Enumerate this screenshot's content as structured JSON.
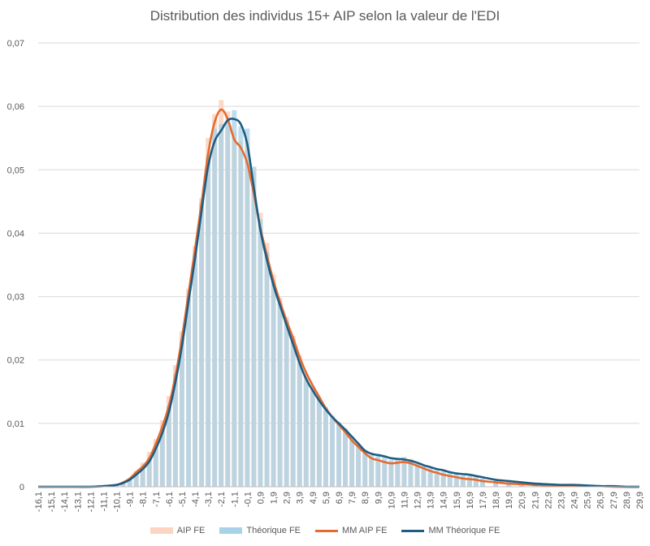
{
  "chart_data": {
    "type": "bar",
    "title": "Distribution des individus 15+ AIP selon la valeur de l'EDI",
    "xlabel": "",
    "ylabel": "",
    "ylim": [
      0,
      0.07
    ],
    "yticks": [
      "0",
      "0,01",
      "0,02",
      "0,03",
      "0,04",
      "0,05",
      "0,06",
      "0,07"
    ],
    "x_tick_labels": [
      "-16,1",
      "-15,1",
      "-14,1",
      "-13,1",
      "-12,1",
      "-11,1",
      "-10,1",
      "-9,1",
      "-8,1",
      "-7,1",
      "-6,1",
      "-5,1",
      "-4,1",
      "-3,1",
      "-2,1",
      "-1,1",
      "-0,1",
      "0,9",
      "1,9",
      "2,9",
      "3,9",
      "4,9",
      "5,9",
      "6,9",
      "7,9",
      "8,9",
      "9,9",
      "10,9",
      "11,9",
      "12,9",
      "13,9",
      "14,9",
      "15,9",
      "16,9",
      "17,9",
      "18,9",
      "19,9",
      "20,9",
      "21,9",
      "22,9",
      "23,9",
      "24,9",
      "25,9",
      "26,9",
      "27,9",
      "28,9",
      "29,9"
    ],
    "xlim": [
      -16.1,
      29.9
    ],
    "grid": true,
    "legend_position": "bottom",
    "colors": {
      "aip_fe": "#fbd5c2",
      "theorique_fe": "#a8d2e8",
      "mm_aip_fe": "#e56b2e",
      "mm_theorique_fe": "#1e5c82"
    },
    "legend": [
      "AIP FE",
      "Théorique FE",
      "MM AIP FE",
      "MM Théorique FE"
    ],
    "series": [
      {
        "name": "AIP FE",
        "kind": "bar",
        "x": [
          -16.1,
          -15.1,
          -14.1,
          -13.1,
          -12.1,
          -11.1,
          -10.1,
          -9.6,
          -9.1,
          -8.6,
          -8.1,
          -7.6,
          -7.1,
          -6.6,
          -6.1,
          -5.6,
          -5.1,
          -4.6,
          -4.1,
          -3.6,
          -3.1,
          -2.6,
          -2.1,
          -1.6,
          -1.1,
          -0.6,
          -0.1,
          0.4,
          0.9,
          1.4,
          1.9,
          2.4,
          2.9,
          3.4,
          3.9,
          4.4,
          4.9,
          5.4,
          5.9,
          6.4,
          6.9,
          7.4,
          7.9,
          8.4,
          8.9,
          9.4,
          9.9,
          10.4,
          10.9,
          11.4,
          11.9,
          12.4,
          12.9,
          13.4,
          13.9,
          14.4,
          14.9,
          15.4,
          15.9,
          16.4,
          16.9,
          17.4,
          17.9,
          18.9,
          19.9,
          20.9,
          21.9,
          22.9,
          23.9,
          24.9,
          25.9,
          26.9,
          27.9,
          28.9,
          29.9
        ],
        "values": [
          0,
          0,
          0,
          0,
          0,
          0.0001,
          0.0003,
          0.0007,
          0.0013,
          0.0025,
          0.0038,
          0.0055,
          0.0075,
          0.0105,
          0.0143,
          0.0192,
          0.0245,
          0.0312,
          0.038,
          0.0455,
          0.055,
          0.0588,
          0.061,
          0.0592,
          0.056,
          0.0545,
          0.0548,
          0.0498,
          0.0432,
          0.0385,
          0.0335,
          0.0298,
          0.0268,
          0.0238,
          0.0208,
          0.0178,
          0.0158,
          0.0138,
          0.0121,
          0.0108,
          0.0098,
          0.0085,
          0.0072,
          0.0062,
          0.0052,
          0.0042,
          0.004,
          0.0038,
          0.0036,
          0.0042,
          0.0046,
          0.0044,
          0.0034,
          0.0028,
          0.0022,
          0.0019,
          0.0017,
          0.0015,
          0.0013,
          0.0012,
          0.0011,
          0.001,
          0.0009,
          0.0007,
          0.0005,
          0.0004,
          0.0003,
          0.0002,
          0.0002,
          0.0002,
          0.0001,
          0.0001,
          0,
          0,
          0
        ]
      },
      {
        "name": "Théorique FE",
        "kind": "bar",
        "x": [
          -16.1,
          -15.1,
          -14.1,
          -13.1,
          -12.1,
          -11.1,
          -10.1,
          -9.6,
          -9.1,
          -8.6,
          -8.1,
          -7.6,
          -7.1,
          -6.6,
          -6.1,
          -5.6,
          -5.1,
          -4.6,
          -4.1,
          -3.6,
          -3.1,
          -2.6,
          -2.1,
          -1.6,
          -1.1,
          -0.6,
          -0.1,
          0.4,
          0.9,
          1.4,
          1.9,
          2.4,
          2.9,
          3.4,
          3.9,
          4.4,
          4.9,
          5.4,
          5.9,
          6.4,
          6.9,
          7.4,
          7.9,
          8.4,
          8.9,
          9.4,
          9.9,
          10.4,
          10.9,
          11.4,
          11.9,
          12.4,
          12.9,
          13.4,
          13.9,
          14.4,
          14.9,
          15.4,
          15.9,
          16.4,
          16.9,
          17.4,
          17.9,
          18.9,
          19.9,
          20.9,
          21.9,
          22.9,
          23.9,
          24.9,
          25.9,
          26.9,
          27.9,
          28.9,
          29.9
        ],
        "values": [
          0,
          0,
          0,
          0,
          0,
          0.0001,
          0.0003,
          0.0006,
          0.0011,
          0.002,
          0.0031,
          0.0046,
          0.0064,
          0.009,
          0.0128,
          0.0178,
          0.0232,
          0.0298,
          0.0365,
          0.0448,
          0.052,
          0.0565,
          0.0572,
          0.0575,
          0.0594,
          0.0568,
          0.0565,
          0.0505,
          0.0422,
          0.037,
          0.0322,
          0.029,
          0.0262,
          0.0232,
          0.0198,
          0.0168,
          0.0152,
          0.0138,
          0.0126,
          0.0112,
          0.0102,
          0.0092,
          0.008,
          0.0067,
          0.0058,
          0.005,
          0.0052,
          0.0048,
          0.0042,
          0.0045,
          0.0047,
          0.0043,
          0.0037,
          0.0032,
          0.0029,
          0.0026,
          0.0024,
          0.0022,
          0.002,
          0.0018,
          0.0017,
          0.0015,
          0.0013,
          0.001,
          0.0008,
          0.0006,
          0.0005,
          0.0004,
          0.0003,
          0.0003,
          0.0002,
          0.0001,
          0.0001,
          0,
          0
        ]
      },
      {
        "name": "MM AIP FE",
        "kind": "line",
        "x": [
          -16.1,
          -15.1,
          -14.1,
          -13.1,
          -12.1,
          -11.1,
          -10.1,
          -9.6,
          -9.1,
          -8.6,
          -8.1,
          -7.6,
          -7.1,
          -6.6,
          -6.1,
          -5.6,
          -5.1,
          -4.6,
          -4.1,
          -3.6,
          -3.1,
          -2.6,
          -2.1,
          -1.6,
          -1.1,
          -0.6,
          -0.1,
          0.4,
          0.9,
          1.4,
          1.9,
          2.4,
          2.9,
          3.4,
          3.9,
          4.4,
          4.9,
          5.4,
          5.9,
          6.4,
          6.9,
          7.4,
          7.9,
          8.4,
          8.9,
          9.4,
          9.9,
          10.4,
          10.9,
          11.4,
          11.9,
          12.4,
          12.9,
          13.4,
          13.9,
          14.4,
          14.9,
          15.4,
          15.9,
          16.4,
          16.9,
          17.4,
          17.9,
          18.9,
          19.9,
          20.9,
          21.9,
          22.9,
          23.9,
          24.9,
          25.9,
          26.9,
          27.9,
          28.9,
          29.9
        ],
        "values": [
          0,
          0,
          0,
          0,
          0,
          0.0001,
          0.0003,
          0.0007,
          0.0013,
          0.0023,
          0.0032,
          0.0045,
          0.0068,
          0.0095,
          0.0128,
          0.0175,
          0.0235,
          0.0305,
          0.0375,
          0.0448,
          0.0525,
          0.0575,
          0.0595,
          0.058,
          0.0548,
          0.0535,
          0.051,
          0.0462,
          0.0408,
          0.0365,
          0.0325,
          0.0292,
          0.0262,
          0.0235,
          0.0205,
          0.018,
          0.016,
          0.0142,
          0.0124,
          0.011,
          0.0098,
          0.0086,
          0.0073,
          0.0063,
          0.0053,
          0.0045,
          0.0042,
          0.0039,
          0.0037,
          0.0038,
          0.0039,
          0.0037,
          0.0033,
          0.0029,
          0.0025,
          0.0022,
          0.0019,
          0.0017,
          0.0015,
          0.0013,
          0.0012,
          0.0011,
          0.0009,
          0.0007,
          0.0005,
          0.0004,
          0.0003,
          0.0002,
          0.0002,
          0.0002,
          0.0001,
          0.0001,
          0,
          0,
          0
        ]
      },
      {
        "name": "MM Théorique FE",
        "kind": "line",
        "x": [
          -16.1,
          -15.1,
          -14.1,
          -13.1,
          -12.1,
          -11.1,
          -10.1,
          -9.6,
          -9.1,
          -8.6,
          -8.1,
          -7.6,
          -7.1,
          -6.6,
          -6.1,
          -5.6,
          -5.1,
          -4.6,
          -4.1,
          -3.6,
          -3.1,
          -2.6,
          -2.1,
          -1.6,
          -1.1,
          -0.6,
          -0.1,
          0.4,
          0.9,
          1.4,
          1.9,
          2.4,
          2.9,
          3.4,
          3.9,
          4.4,
          4.9,
          5.4,
          5.9,
          6.4,
          6.9,
          7.4,
          7.9,
          8.4,
          8.9,
          9.4,
          9.9,
          10.4,
          10.9,
          11.4,
          11.9,
          12.4,
          12.9,
          13.4,
          13.9,
          14.4,
          14.9,
          15.4,
          15.9,
          16.4,
          16.9,
          17.4,
          17.9,
          18.9,
          19.9,
          20.9,
          21.9,
          22.9,
          23.9,
          24.9,
          25.9,
          26.9,
          27.9,
          28.9,
          29.9
        ],
        "values": [
          0,
          0,
          0,
          0,
          0,
          0.0001,
          0.0003,
          0.0006,
          0.0011,
          0.0019,
          0.0028,
          0.004,
          0.006,
          0.0085,
          0.0118,
          0.0165,
          0.0222,
          0.0292,
          0.036,
          0.0435,
          0.0505,
          0.0545,
          0.0562,
          0.0578,
          0.058,
          0.0572,
          0.054,
          0.0472,
          0.0405,
          0.0358,
          0.0318,
          0.0286,
          0.0255,
          0.0225,
          0.0195,
          0.017,
          0.0152,
          0.0136,
          0.0122,
          0.011,
          0.01,
          0.009,
          0.0079,
          0.0068,
          0.0057,
          0.0052,
          0.005,
          0.0048,
          0.0045,
          0.0044,
          0.0043,
          0.0041,
          0.0038,
          0.0034,
          0.0031,
          0.0028,
          0.0026,
          0.0023,
          0.0021,
          0.002,
          0.0019,
          0.0017,
          0.0015,
          0.0011,
          0.0009,
          0.0007,
          0.0005,
          0.0004,
          0.0003,
          0.0003,
          0.0002,
          0.0001,
          0.0001,
          0,
          0
        ]
      }
    ]
  }
}
